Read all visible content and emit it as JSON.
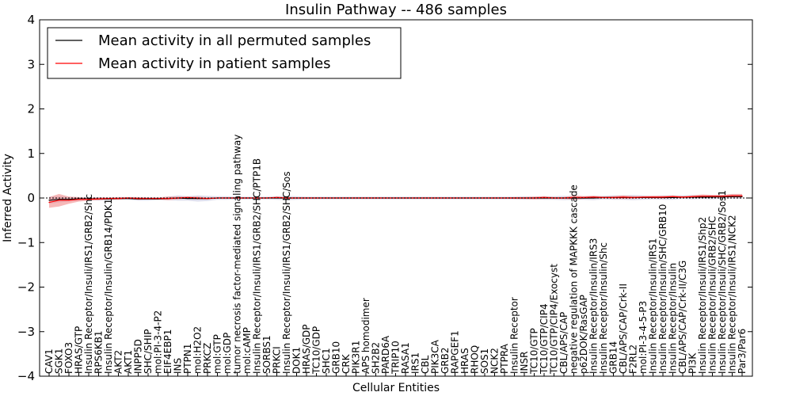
{
  "chart_data": {
    "type": "line",
    "title": "Insulin Pathway -- 486 samples",
    "xlabel": "Cellular Entities",
    "ylabel": "Inferred Activity",
    "ylim": [
      -4,
      4
    ],
    "yticks": [
      "−4",
      "−3",
      "−2",
      "−1",
      "0",
      "1",
      "2",
      "3",
      "4"
    ],
    "legend_position": "upper-left",
    "categories": [
      "CAV1",
      "SGK1",
      "FOXO3",
      "HRAS/GTP",
      "Insulin Receptor/Insuli/IRS1/GRB2/Shc",
      "RPS6KB1",
      "Insulin Receptor/Insulin/GRB14/PDK1",
      "AKT2",
      "AKT1",
      "INPP5D",
      "SHC/SHIP",
      "mol:PI-3-4-P2",
      "EIF4EBP1",
      "INS",
      "PTPN1",
      "mol:H2O2",
      "PRKCZ",
      "mol:GTP",
      "mol:GDP",
      "tumor necrosis factor-mediated signaling pathway",
      "mol:cAMP",
      "Insulin Receptor/Insuli/IRS1/GRB2/SHC/PTP1B",
      "SORBS1",
      "PRKCI",
      "Insulin Receptor/Insuli/IRS1/GRB2/SHC/Sos",
      "DOK1",
      "HRAS/GDP",
      "TC10/GDP",
      "SHC1",
      "GRB10",
      "CRK",
      "PIK3R1",
      "APS homodimer",
      "SH2B2",
      "PARD6A",
      "TRIP10",
      "RASA1",
      "IRS1",
      "CBL",
      "PIK3CA",
      "GRB2",
      "RAPGEF1",
      "HRAS",
      "RHOQ",
      "SOS1",
      "NCK2",
      "PTPRA",
      "Insulin Receptor",
      "INSR",
      "TC10/GTP",
      "TC10/GTP/CIP4",
      "TC10/GTP/CIP4/Exocyst",
      "CBL/APS/CAP",
      "negative regulation of MAPKKK cascade",
      "p62DOK/RasGAP",
      "Insulin Receptor/Insulin/IRS3",
      "Insulin Receptor/Insulin/Shc",
      "GRB14",
      "CBL/APS/CAP/Crk-II",
      "F2RL2",
      "mol:PI-3-4-5-P3",
      "Insulin Receptor/Insulin/IRS1",
      "Insulin Receptor/Insulin/SHC/GRB10",
      "Insulin Receptor/Insulin",
      "CBL/APS/CAP/Crk-II/C3G",
      "PI3K",
      "Insulin Receptor/Insuli/IRS1/Shp2",
      "Insulin Receptor/Insuli/GRB2/SHC",
      "Insulin Receptor/Insuli/SHC/GRB2/Sos1",
      "Insulin Receptor/Insuli/IRS1/NCK2",
      "Par3/Par6"
    ],
    "series": [
      {
        "name": "Mean activity in all permuted samples",
        "color": "#000000",
        "values": [
          -0.05,
          -0.03,
          -0.03,
          -0.02,
          -0.02,
          -0.02,
          -0.02,
          -0.01,
          -0.01,
          -0.02,
          -0.02,
          -0.02,
          -0.01,
          0.0,
          -0.01,
          -0.01,
          -0.01,
          0.0,
          0.0,
          0.0,
          0.0,
          0.0,
          0.0,
          0.0,
          0.0,
          0.0,
          0.0,
          0.0,
          0.0,
          0.0,
          0.0,
          0.0,
          0.0,
          0.0,
          0.0,
          0.0,
          0.0,
          0.0,
          0.0,
          0.0,
          0.0,
          0.0,
          0.0,
          0.0,
          0.0,
          0.0,
          0.0,
          0.0,
          0.0,
          0.0,
          0.0,
          0.0,
          0.0,
          0.0,
          0.0,
          0.0,
          0.01,
          0.01,
          0.01,
          0.01,
          0.01,
          0.01,
          0.01,
          0.01,
          0.02,
          0.02,
          0.02,
          0.02,
          0.03,
          0.03,
          0.03
        ],
        "band": [
          0.08,
          0.07,
          0.05,
          0.04,
          0.03,
          0.04,
          0.03,
          0.03,
          0.03,
          0.04,
          0.04,
          0.03,
          0.04,
          0.06,
          0.05,
          0.07,
          0.06,
          0.04,
          0.04,
          0.03,
          0.03,
          0.03,
          0.03,
          0.04,
          0.05,
          0.04,
          0.03,
          0.03,
          0.03,
          0.03,
          0.03,
          0.03,
          0.03,
          0.03,
          0.03,
          0.03,
          0.03,
          0.03,
          0.03,
          0.03,
          0.03,
          0.03,
          0.03,
          0.03,
          0.03,
          0.03,
          0.03,
          0.03,
          0.04,
          0.03,
          0.04,
          0.04,
          0.05,
          0.04,
          0.04,
          0.05,
          0.04,
          0.05,
          0.05,
          0.06,
          0.05,
          0.04,
          0.05,
          0.05,
          0.04,
          0.05,
          0.04,
          0.05,
          0.04,
          0.05,
          0.05
        ]
      },
      {
        "name": "Mean activity in patient samples",
        "color": "#ff0000",
        "values": [
          -0.1,
          -0.05,
          -0.05,
          -0.03,
          -0.03,
          -0.02,
          -0.01,
          -0.01,
          0.0,
          -0.01,
          -0.01,
          -0.01,
          -0.01,
          0.0,
          0.01,
          0.0,
          -0.01,
          0.0,
          0.0,
          0.0,
          0.0,
          0.0,
          0.0,
          0.01,
          0.0,
          0.0,
          0.0,
          0.0,
          0.0,
          0.0,
          0.0,
          0.0,
          0.0,
          0.0,
          0.0,
          0.0,
          0.0,
          0.0,
          0.0,
          0.0,
          0.0,
          0.0,
          0.0,
          0.0,
          0.0,
          0.0,
          0.0,
          0.0,
          0.0,
          0.0,
          0.01,
          0.0,
          0.0,
          0.01,
          0.01,
          0.02,
          0.01,
          0.01,
          0.02,
          0.01,
          0.02,
          0.02,
          0.02,
          0.03,
          0.02,
          0.03,
          0.04,
          0.04,
          0.04,
          0.05,
          0.05
        ],
        "band": [
          0.12,
          0.14,
          0.08,
          0.05,
          0.03,
          0.03,
          0.02,
          0.03,
          0.02,
          0.03,
          0.02,
          0.02,
          0.04,
          0.03,
          0.02,
          0.03,
          0.02,
          0.01,
          0.01,
          0.01,
          0.01,
          0.01,
          0.01,
          0.02,
          0.02,
          0.01,
          0.01,
          0.01,
          0.01,
          0.01,
          0.01,
          0.01,
          0.01,
          0.01,
          0.01,
          0.01,
          0.01,
          0.01,
          0.01,
          0.01,
          0.01,
          0.01,
          0.01,
          0.01,
          0.01,
          0.01,
          0.01,
          0.02,
          0.02,
          0.03,
          0.03,
          0.02,
          0.02,
          0.05,
          0.03,
          0.03,
          0.02,
          0.03,
          0.04,
          0.03,
          0.02,
          0.03,
          0.03,
          0.03,
          0.02,
          0.03,
          0.04,
          0.03,
          0.03,
          0.04,
          0.04
        ]
      }
    ]
  }
}
